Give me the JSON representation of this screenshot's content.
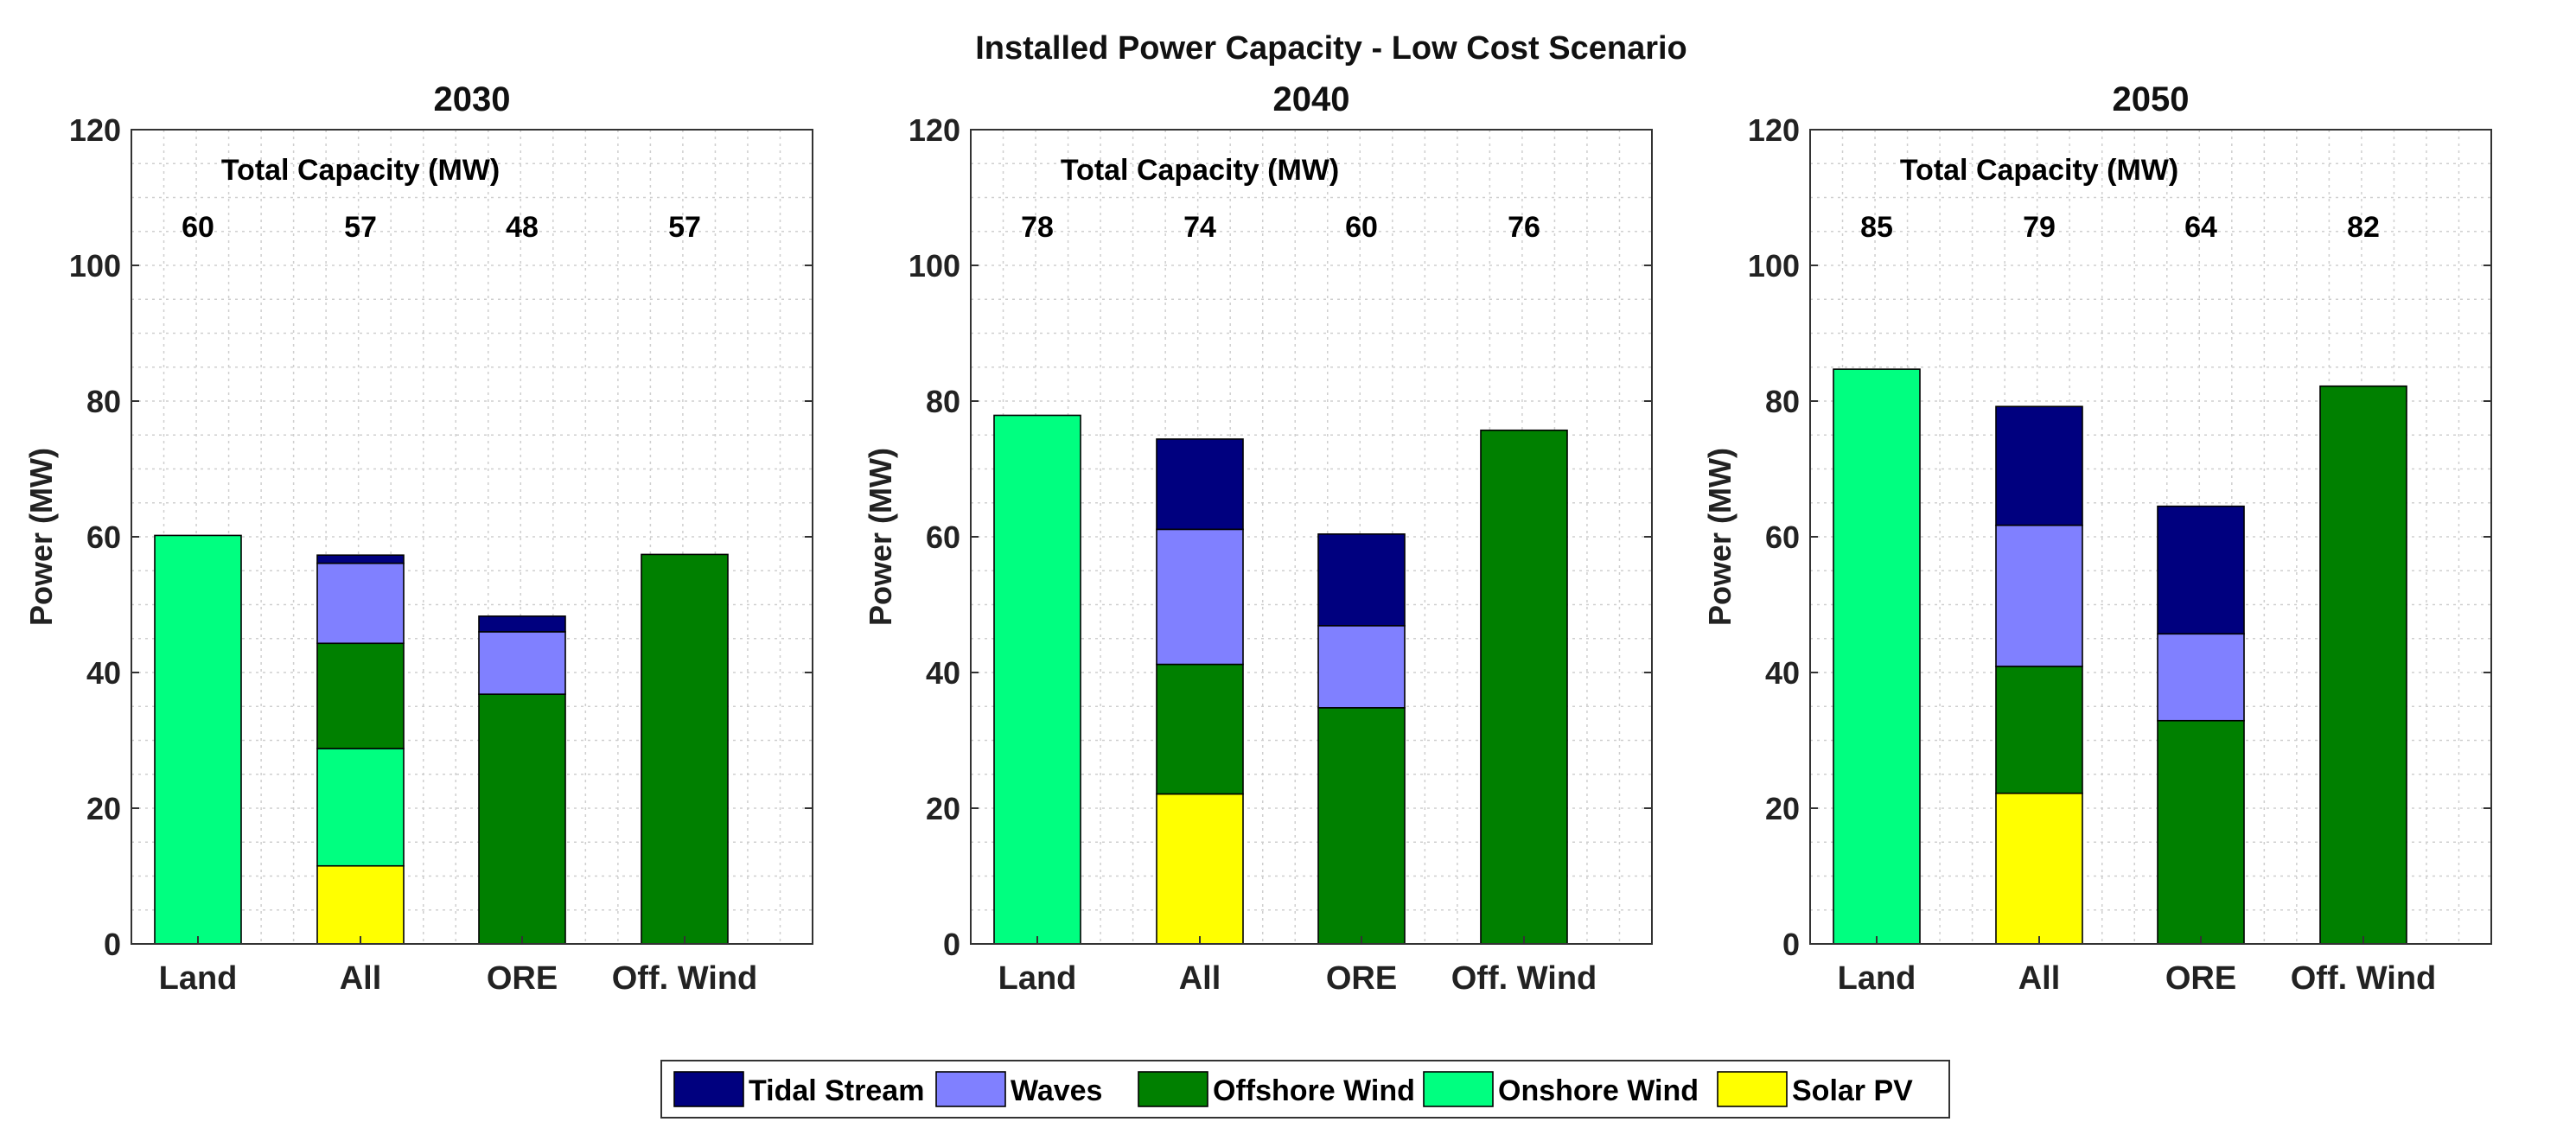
{
  "title": "Installed Power Capacity - Low Cost Scenario",
  "colors": {
    "Tidal Stream": "#00007f",
    "Waves": "#8080ff",
    "Offshore Wind": "#008000",
    "Onshore Wind": "#00ff80",
    "Solar PV": "#ffff00"
  },
  "legend": [
    "Tidal Stream",
    "Waves",
    "Offshore Wind",
    "Onshore Wind",
    "Solar PV"
  ],
  "chart_data": [
    {
      "type": "bar",
      "stacked": true,
      "title": "2030",
      "xlabel": "",
      "ylabel": "Power (MW)",
      "ylim": [
        0,
        120
      ],
      "yticks": [
        0,
        20,
        40,
        60,
        80,
        100,
        120
      ],
      "categories": [
        "Land",
        "All",
        "ORE",
        "Off. Wind"
      ],
      "annotation_title": "Total Capacity (MW)",
      "totals": [
        "60",
        "57",
        "48",
        "57"
      ],
      "series": [
        {
          "name": "Solar PV",
          "values": [
            0,
            11.5,
            0,
            0
          ]
        },
        {
          "name": "Onshore Wind",
          "values": [
            60.2,
            17.3,
            0,
            0
          ]
        },
        {
          "name": "Offshore Wind",
          "values": [
            0,
            15.5,
            36.8,
            57.4
          ]
        },
        {
          "name": "Waves",
          "values": [
            0,
            11.8,
            9.2,
            0
          ]
        },
        {
          "name": "Tidal Stream",
          "values": [
            0,
            1.2,
            2.3,
            0
          ]
        }
      ]
    },
    {
      "type": "bar",
      "stacked": true,
      "title": "2040",
      "xlabel": "",
      "ylabel": "Power (MW)",
      "ylim": [
        0,
        120
      ],
      "yticks": [
        0,
        20,
        40,
        60,
        80,
        100,
        120
      ],
      "categories": [
        "Land",
        "All",
        "ORE",
        "Off. Wind"
      ],
      "annotation_title": "Total Capacity (MW)",
      "totals": [
        "78",
        "74",
        "60",
        "76"
      ],
      "series": [
        {
          "name": "Solar PV",
          "values": [
            0,
            22.1,
            0,
            0
          ]
        },
        {
          "name": "Onshore Wind",
          "values": [
            77.9,
            0,
            0,
            0
          ]
        },
        {
          "name": "Offshore Wind",
          "values": [
            0,
            19.1,
            34.8,
            75.7
          ]
        },
        {
          "name": "Waves",
          "values": [
            0,
            19.9,
            12.1,
            0
          ]
        },
        {
          "name": "Tidal Stream",
          "values": [
            0,
            13.3,
            13.5,
            0
          ]
        }
      ]
    },
    {
      "type": "bar",
      "stacked": true,
      "title": "2050",
      "xlabel": "",
      "ylabel": "Power (MW)",
      "ylim": [
        0,
        120
      ],
      "yticks": [
        0,
        20,
        40,
        60,
        80,
        100,
        120
      ],
      "categories": [
        "Land",
        "All",
        "ORE",
        "Off. Wind"
      ],
      "annotation_title": "Total Capacity (MW)",
      "totals": [
        "85",
        "79",
        "64",
        "82"
      ],
      "series": [
        {
          "name": "Solar PV",
          "values": [
            0,
            22.2,
            0,
            0
          ]
        },
        {
          "name": "Onshore Wind",
          "values": [
            84.7,
            0,
            0,
            0
          ]
        },
        {
          "name": "Offshore Wind",
          "values": [
            0,
            18.7,
            32.9,
            82.2
          ]
        },
        {
          "name": "Waves",
          "values": [
            0,
            20.8,
            12.8,
            0
          ]
        },
        {
          "name": "Tidal Stream",
          "values": [
            0,
            17.5,
            18.8,
            0
          ]
        }
      ]
    }
  ]
}
